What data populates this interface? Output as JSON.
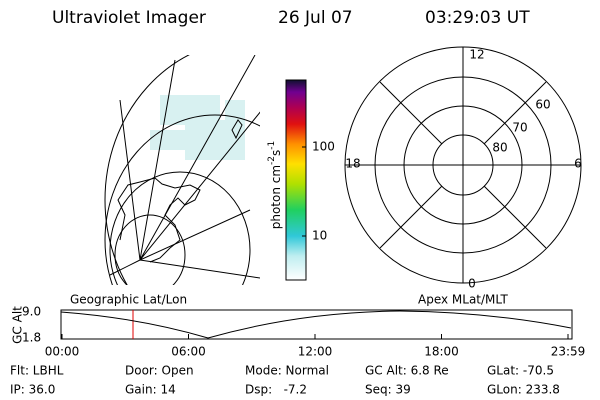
{
  "header": {
    "title": "Ultraviolet Imager",
    "date": "26 Jul 07",
    "time": "03:29:03 UT"
  },
  "colorbar": {
    "unit": "photon cm",
    "exp1": "-2",
    "s": "s",
    "exp2": "-1",
    "ticks": [
      "100",
      "10"
    ]
  },
  "polar": {
    "mlt_labels": [
      "12",
      "18",
      "6",
      "0"
    ],
    "mlat_labels": [
      "60",
      "70",
      "80"
    ]
  },
  "altitude_panel": {
    "left_label": "Geographic Lat/Lon",
    "right_label": "Apex MLat/MLT",
    "axis_title": "GC Alt",
    "max": "9.0",
    "min": "1.8",
    "time_ticks": [
      "00:00",
      "06:00",
      "12:00",
      "18:00",
      "23:59"
    ]
  },
  "info": {
    "rows": [
      [
        "Flt: LBHL",
        "Door: Open",
        "Mode: Normal",
        "GC Alt: 6.8 Re",
        "GLat: -70.5"
      ],
      [
        "IP: 36.0",
        "Gain: 14",
        "Dsp:   -7.2",
        "Seq: 39",
        "GLon: 233.8"
      ]
    ]
  }
}
